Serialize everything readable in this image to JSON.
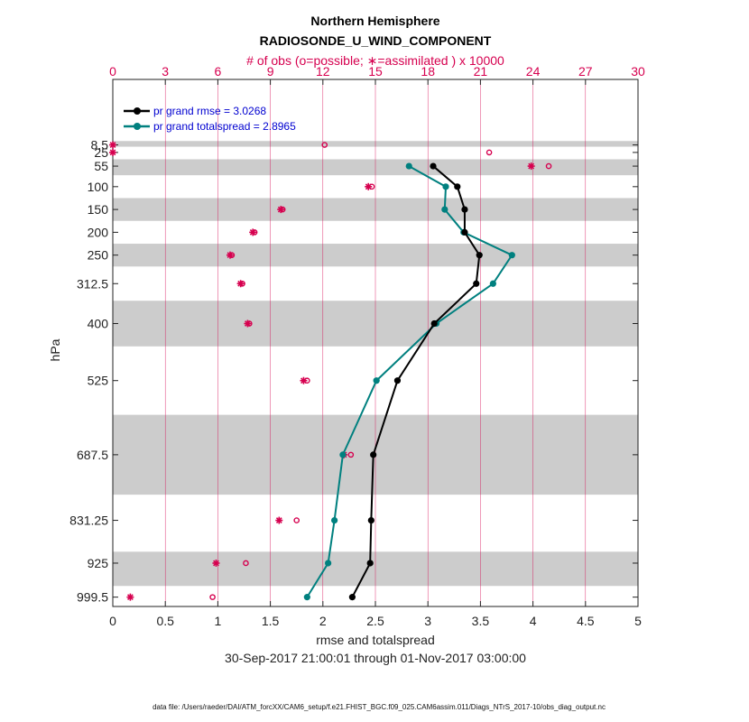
{
  "chart_data": {
    "type": "line",
    "title": "Northern Hemisphere",
    "subtitle": "RADIOSONDE_U_WIND_COMPONENT",
    "top_axis_label": "# of obs (o=possible; ∗=assimilated ) x 10000",
    "xlabel": "rmse and totalspread",
    "ylabel": "hPa",
    "date_range": "30-Sep-2017 21:00:01 through 01-Nov-2017 03:00:00",
    "footer": "data file: /Users/raeder/DAI/ATM_forcXX/CAM6_setup/f.e21.FHIST_BGC.f09_025.CAM6assim.011/Diags_NTrS_2017-10/obs_diag_output.nc",
    "xlim": [
      0,
      5
    ],
    "x_ticks": [
      0,
      0.5,
      1,
      1.5,
      2,
      2.5,
      3,
      3.5,
      4,
      4.5,
      5
    ],
    "x_tick_labels": [
      "0",
      "0.5",
      "1",
      "1.5",
      "2",
      "2.5",
      "3",
      "3.5",
      "4",
      "4.5",
      "5"
    ],
    "top_xlim": [
      0,
      30
    ],
    "top_ticks": [
      0,
      3,
      6,
      9,
      12,
      15,
      18,
      21,
      24,
      27,
      30
    ],
    "top_tick_labels": [
      "0",
      "3",
      "6",
      "9",
      "12",
      "15",
      "18",
      "21",
      "24",
      "27",
      "30"
    ],
    "levels": [
      8.5,
      25,
      55,
      100,
      150,
      200,
      250,
      312.5,
      400,
      525,
      687.5,
      831.25,
      925,
      999.5
    ],
    "level_labels": [
      "8.5",
      "25",
      "55",
      "100",
      "150",
      "200",
      "250",
      "312.5",
      "400",
      "525",
      "687.5",
      "831.25",
      "925",
      "999.5"
    ],
    "shaded_bands": [
      [
        0,
        12.5
      ],
      [
        40,
        75
      ],
      [
        125,
        175
      ],
      [
        225,
        275
      ],
      [
        350,
        450
      ],
      [
        600,
        775
      ],
      [
        900,
        975
      ]
    ],
    "ylim": [
      -135,
      1020
    ],
    "series": [
      {
        "name": "rmse",
        "legend": "pr grand rmse = 3.0268",
        "color": "#000000",
        "levels": [
          55,
          100,
          150,
          200,
          250,
          312.5,
          400,
          525,
          687.5,
          831.25,
          925,
          999.5
        ],
        "values": [
          3.05,
          3.28,
          3.35,
          3.35,
          3.49,
          3.46,
          3.06,
          2.71,
          2.48,
          2.46,
          2.45,
          2.28
        ]
      },
      {
        "name": "totalspread",
        "legend": "pr grand totalspread = 2.8965",
        "color": "#00807f",
        "levels": [
          55,
          100,
          150,
          200,
          250,
          312.5,
          400,
          525,
          687.5,
          831.25,
          925,
          999.5
        ],
        "values": [
          2.82,
          3.17,
          3.16,
          3.34,
          3.8,
          3.62,
          3.08,
          2.51,
          2.19,
          2.11,
          2.05,
          1.85
        ]
      }
    ],
    "obs_possible": {
      "levels": [
        8.5,
        25,
        55,
        100,
        150,
        200,
        250,
        312.5,
        400,
        525,
        687.5,
        831.25,
        925,
        999.5
      ],
      "values": [
        12.1,
        21.5,
        24.9,
        14.8,
        9.7,
        8.1,
        6.8,
        7.4,
        7.8,
        11.1,
        13.6,
        10.5,
        7.6,
        5.7
      ]
    },
    "obs_assimilated": {
      "levels": [
        8.5,
        25,
        55,
        100,
        150,
        200,
        250,
        312.5,
        400,
        525,
        687.5,
        831.25,
        925,
        999.5
      ],
      "values": [
        0.0,
        0.0,
        23.9,
        14.6,
        9.6,
        8.0,
        6.7,
        7.3,
        7.7,
        10.9,
        13.2,
        9.5,
        5.9,
        1.0
      ]
    },
    "colors": {
      "obs_marker": "#d6004f",
      "band": "#cccccc",
      "grid": "#d6004f",
      "legend_text": "#0000d0"
    }
  }
}
